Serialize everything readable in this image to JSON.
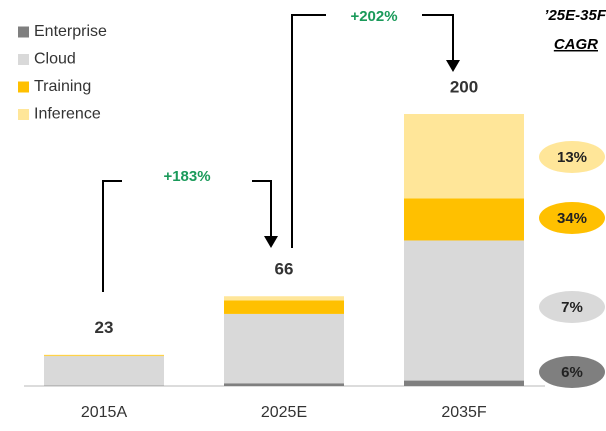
{
  "chart_data": {
    "type": "stacked_bar",
    "categories": [
      "2015A",
      "2025E",
      "2035F"
    ],
    "series": [
      {
        "name": "Enterprise",
        "color": "#7f7f7f",
        "values": [
          0.3,
          2,
          4
        ]
      },
      {
        "name": "Cloud",
        "color": "#d9d9d9",
        "values": [
          21.7,
          51,
          103
        ]
      },
      {
        "name": "Training",
        "color": "#ffc000",
        "values": [
          0.6,
          10,
          31
        ]
      },
      {
        "name": "Inference",
        "color": "#ffe699",
        "values": [
          0.4,
          3,
          62
        ]
      }
    ],
    "totals": [
      23,
      66,
      200
    ],
    "growth": [
      "+183%",
      "+202%"
    ],
    "cagr": {
      "title": "’25E-35F",
      "subtitle": "CAGR",
      "values": [
        6,
        7,
        34,
        13
      ],
      "value_labels": [
        "6%",
        "7%",
        "34%",
        "13%"
      ]
    },
    "ylim": [
      0,
      200
    ],
    "legend": "top-left"
  }
}
